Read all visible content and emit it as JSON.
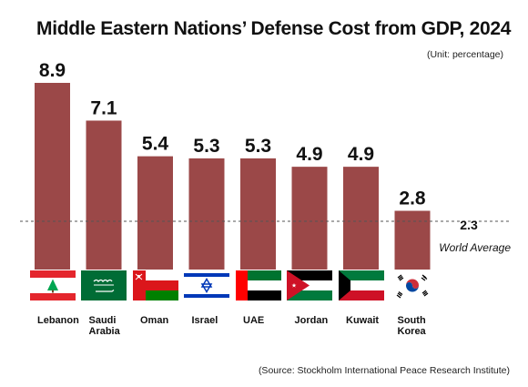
{
  "header": {
    "title": "Middle Eastern Nations’ Defense Cost from GDP, 2024",
    "unit": "(Unit: percentage)"
  },
  "footer": {
    "source": "(Source: Stockholm International Peace Research Institute)"
  },
  "colors": {
    "bar": "#9b4848",
    "reference_line": "#555555"
  },
  "chart_data": {
    "type": "bar",
    "title": "Middle Eastern Nations’ Defense Cost from GDP, 2024",
    "categories": [
      [
        "Lebanon"
      ],
      [
        "Saudi",
        "Arabia"
      ],
      [
        "Oman"
      ],
      [
        "Israel"
      ],
      [
        "UAE"
      ],
      [
        "Jordan"
      ],
      [
        "Kuwait"
      ],
      [
        "South",
        "Korea"
      ]
    ],
    "flags": [
      "lebanon-flag-icon",
      "saudi-arabia-flag-icon",
      "oman-flag-icon",
      "israel-flag-icon",
      "uae-flag-icon",
      "jordan-flag-icon",
      "kuwait-flag-icon",
      "south-korea-flag-icon"
    ],
    "values": [
      8.9,
      7.1,
      5.4,
      5.3,
      5.3,
      4.9,
      4.9,
      2.8
    ],
    "value_labels": [
      "8.9",
      "7.1",
      "5.4",
      "5.3",
      "5.3",
      "4.9",
      "4.9",
      "2.8"
    ],
    "reference_line": {
      "value": 2.3,
      "value_label": "2.3",
      "label": "World Average"
    },
    "ylim": [
      0,
      8.9
    ],
    "grid": false,
    "legend": "none"
  }
}
